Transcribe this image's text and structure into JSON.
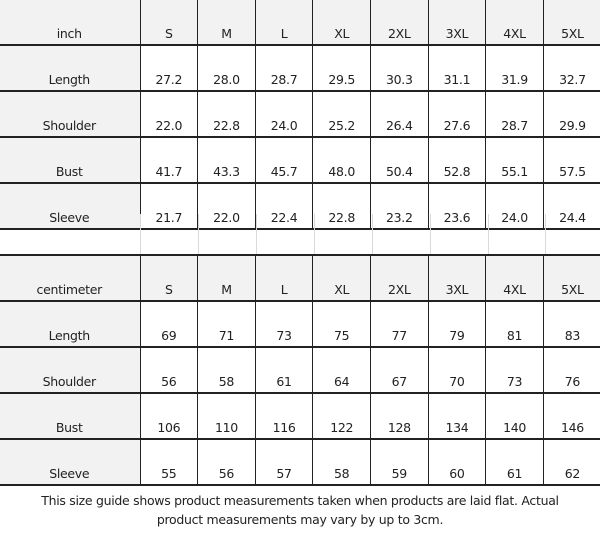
{
  "sizes": [
    "S",
    "M",
    "L",
    "XL",
    "2XL",
    "3XL",
    "4XL",
    "5XL"
  ],
  "inch": {
    "unit": "inch",
    "rows": [
      {
        "label": "Length",
        "values": [
          "27.2",
          "28.0",
          "28.7",
          "29.5",
          "30.3",
          "31.1",
          "31.9",
          "32.7"
        ]
      },
      {
        "label": "Shoulder",
        "values": [
          "22.0",
          "22.8",
          "24.0",
          "25.2",
          "26.4",
          "27.6",
          "28.7",
          "29.9"
        ]
      },
      {
        "label": "Bust",
        "values": [
          "41.7",
          "43.3",
          "45.7",
          "48.0",
          "50.4",
          "52.8",
          "55.1",
          "57.5"
        ]
      },
      {
        "label": "Sleeve",
        "values": [
          "21.7",
          "22.0",
          "22.4",
          "22.8",
          "23.2",
          "23.6",
          "24.0",
          "24.4"
        ]
      }
    ]
  },
  "cm": {
    "unit": "centimeter",
    "rows": [
      {
        "label": "Length",
        "values": [
          "69",
          "71",
          "73",
          "75",
          "77",
          "79",
          "81",
          "83"
        ]
      },
      {
        "label": "Shoulder",
        "values": [
          "56",
          "58",
          "61",
          "64",
          "67",
          "70",
          "73",
          "76"
        ]
      },
      {
        "label": "Bust",
        "values": [
          "106",
          "110",
          "116",
          "122",
          "128",
          "134",
          "140",
          "146"
        ]
      },
      {
        "label": "Sleeve",
        "values": [
          "55",
          "56",
          "57",
          "58",
          "59",
          "60",
          "61",
          "62"
        ]
      }
    ]
  },
  "caption": {
    "line1": "This size guide shows product measurements taken when products are laid flat. Actual",
    "line2": "product measurements may vary by up to 3cm."
  }
}
